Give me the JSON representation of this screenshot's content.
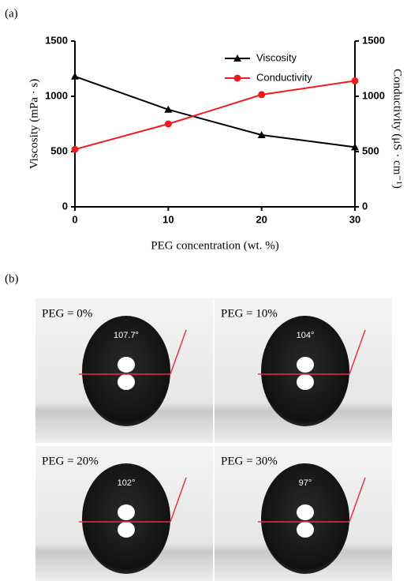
{
  "panel_a_label": "(a)",
  "chart_data": {
    "type": "line",
    "x": [
      0,
      10,
      20,
      30
    ],
    "xlim": [
      0,
      30
    ],
    "xticks": [
      0,
      10,
      20,
      30
    ],
    "xlabel": "PEG concentration (wt. %)",
    "ylabel": "Viscosity (mPa · s)",
    "ylim": [
      0,
      1500
    ],
    "yticks": [
      0,
      500,
      1000,
      1500
    ],
    "y2label": "Conductivity (μS · cm⁻¹)",
    "y2lim": [
      0,
      1500
    ],
    "y2ticks": [
      0,
      500,
      1000,
      1500
    ],
    "legend": "top-right",
    "series": [
      {
        "name": "Viscosity",
        "color": "#000000",
        "marker": "triangle",
        "values": [
          1180,
          880,
          650,
          540
        ]
      },
      {
        "name": "Conductivity",
        "color": "#ee1c1c",
        "marker": "circle",
        "axis": "y2",
        "values": [
          520,
          750,
          1015,
          1140
        ]
      }
    ]
  },
  "panel_b": {
    "label": "(b)",
    "images": [
      {
        "caption": "PEG = 0%",
        "angle": "107.7°"
      },
      {
        "caption": "PEG = 10%",
        "angle": "104°"
      },
      {
        "caption": "PEG = 20%",
        "angle": "102°"
      },
      {
        "caption": "PEG = 30%",
        "angle": "97°"
      }
    ]
  }
}
